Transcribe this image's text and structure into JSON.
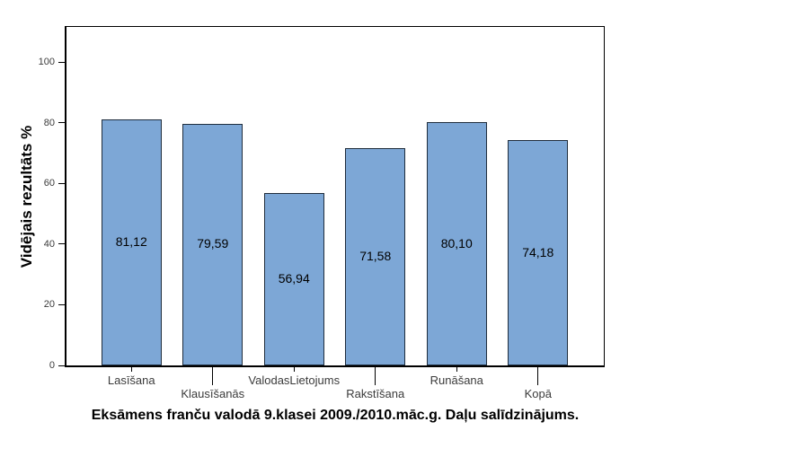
{
  "chart_data": {
    "type": "bar",
    "title": "Eksāmens franču valodā 9.klasei 2009./2010.māc.g. Daļu salīdzinājums.",
    "ylabel": "Vidējais rezultāts %",
    "xlabel": "",
    "categories": [
      "Lasīšana",
      "Klausīšanās",
      "ValodasLietojums",
      "Rakstīšana",
      "Runāšana",
      "Kopā"
    ],
    "values": [
      81.12,
      79.59,
      56.94,
      71.58,
      80.1,
      74.18
    ],
    "value_labels": [
      "81,12",
      "79,59",
      "56,94",
      "71,58",
      "80,10",
      "74,18"
    ],
    "yticks": [
      0,
      20,
      40,
      60,
      80,
      100
    ],
    "ylim": [
      0,
      112
    ],
    "grid": false,
    "legend": "none",
    "value_label_position": "center-of-bar",
    "x_label_layout": "staggered-two-rows",
    "colors": {
      "bar_fill": "#7da7d6",
      "bar_border": "#1f2d3d",
      "axis": "#000000",
      "tick_label": "#3b3b3b",
      "background": "#ffffff"
    }
  }
}
